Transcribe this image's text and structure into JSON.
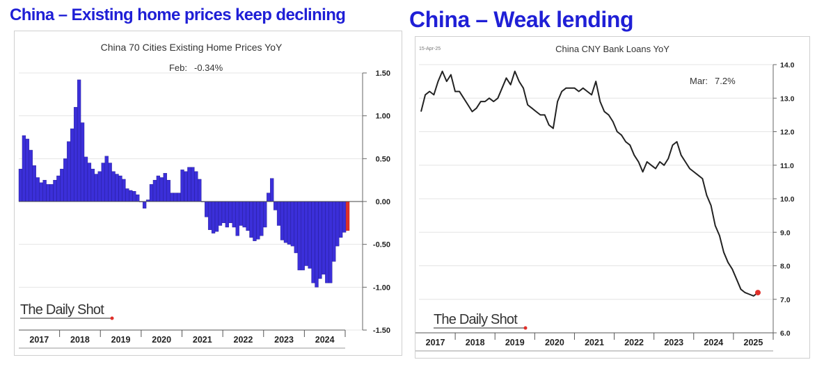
{
  "headers": {
    "left": "China – Existing home prices keep declining",
    "right": "China – Weak lending"
  },
  "colors": {
    "header": "#1f1fd6",
    "bar_fill": "#3b2fd9",
    "highlight": "#e0302a",
    "line": "#222222",
    "grid": "#e4e4e4"
  },
  "chart_data": [
    {
      "type": "bar",
      "title": "China 70 Cities Existing Home Prices YoY",
      "annotation": {
        "label": "Feb:",
        "value": "-0.34%"
      },
      "ylim": [
        -1.5,
        1.5
      ],
      "yticks": [
        "1.50",
        "1.00",
        "0.50",
        "0.00",
        "-0.50",
        "-1.00",
        "-1.50"
      ],
      "year_labels": [
        "2017",
        "2018",
        "2019",
        "2020",
        "2021",
        "2022",
        "2023",
        "2024"
      ],
      "watermark": "The Daily Shot",
      "series": [
        {
          "values": [
            0.38,
            0.77,
            0.73,
            0.6,
            0.42,
            0.28,
            0.22,
            0.25,
            0.2,
            0.2,
            0.25,
            0.3,
            0.38,
            0.5,
            0.7,
            0.85,
            1.1,
            1.42,
            0.92,
            0.52,
            0.45,
            0.38,
            0.32,
            0.35,
            0.45,
            0.53,
            0.45,
            0.35,
            0.32,
            0.3,
            0.26,
            0.15,
            0.13,
            0.12,
            0.08,
            0.0,
            -0.08,
            0.02,
            0.2,
            0.25,
            0.3,
            0.28,
            0.33,
            0.25,
            0.1,
            0.1,
            0.1,
            0.37,
            0.35,
            0.4,
            0.4,
            0.35,
            0.26,
            0.0,
            -0.18,
            -0.33,
            -0.37,
            -0.35,
            -0.28,
            -0.25,
            -0.3,
            -0.25,
            -0.3,
            -0.4,
            -0.28,
            -0.3,
            -0.34,
            -0.42,
            -0.46,
            -0.44,
            -0.4,
            -0.3,
            0.1,
            0.27,
            -0.1,
            -0.28,
            -0.45,
            -0.48,
            -0.5,
            -0.52,
            -0.6,
            -0.8,
            -0.8,
            -0.75,
            -0.78,
            -0.95,
            -1.0,
            -0.9,
            -0.85,
            -0.95,
            -0.95,
            -0.7,
            -0.52,
            -0.42,
            -0.36,
            -0.34
          ]
        }
      ],
      "highlight_last": true
    },
    {
      "type": "line",
      "title": "China CNY Bank Loans YoY",
      "date_stamp": "15-Apr-25",
      "annotation": {
        "label": "Mar:",
        "value": "7.2%"
      },
      "ylim": [
        6.0,
        14.0
      ],
      "yticks": [
        "14.0",
        "13.0",
        "12.0",
        "11.0",
        "10.0",
        "9.0",
        "8.0",
        "7.0",
        "6.0"
      ],
      "year_labels": [
        "2017",
        "2018",
        "2019",
        "2020",
        "2021",
        "2022",
        "2023",
        "2024",
        "2025"
      ],
      "watermark": "The Daily Shot",
      "series": [
        {
          "values": [
            12.6,
            13.1,
            13.2,
            13.1,
            13.5,
            13.8,
            13.5,
            13.7,
            13.2,
            13.2,
            13.0,
            12.8,
            12.6,
            12.7,
            12.9,
            12.9,
            13.0,
            12.9,
            13.0,
            13.3,
            13.6,
            13.4,
            13.8,
            13.5,
            13.3,
            12.8,
            12.7,
            12.6,
            12.5,
            12.5,
            12.2,
            12.1,
            12.9,
            13.2,
            13.3,
            13.3,
            13.3,
            13.2,
            13.3,
            13.2,
            13.1,
            13.5,
            12.9,
            12.6,
            12.5,
            12.3,
            12.0,
            11.9,
            11.7,
            11.6,
            11.3,
            11.1,
            10.8,
            11.1,
            11.0,
            10.9,
            11.1,
            11.0,
            11.2,
            11.6,
            11.7,
            11.3,
            11.1,
            10.9,
            10.8,
            10.7,
            10.6,
            10.1,
            9.8,
            9.2,
            8.9,
            8.4,
            8.1,
            7.9,
            7.6,
            7.3,
            7.2,
            7.15,
            7.1,
            7.2
          ]
        }
      ],
      "highlight_last": true
    }
  ]
}
